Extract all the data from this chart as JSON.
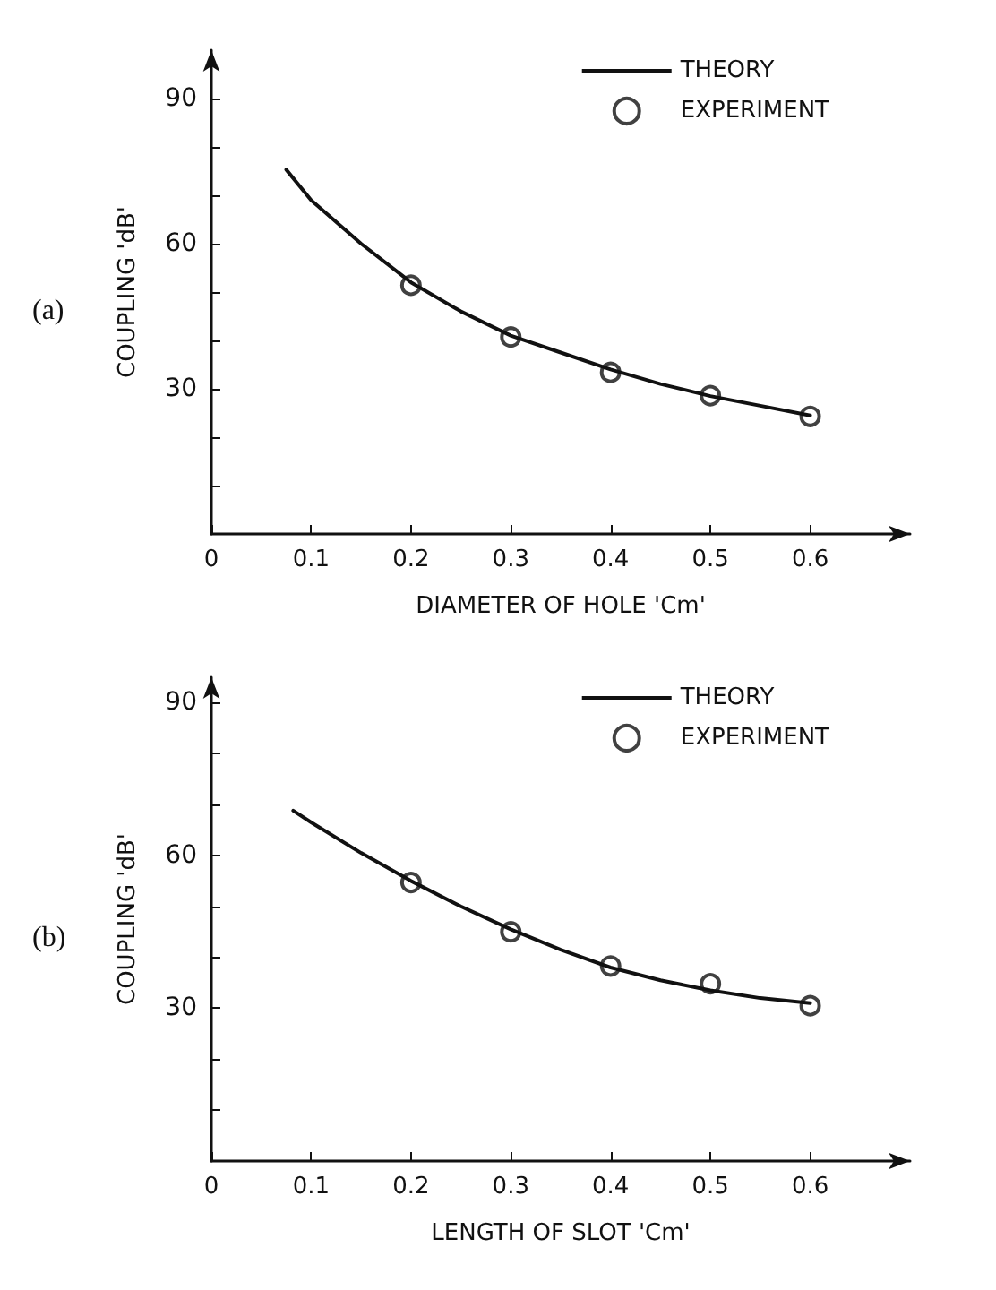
{
  "chart_data": [
    {
      "type": "line",
      "annotations": [
        "(a)"
      ],
      "xlabel": "DIAMETER OF HOLE 'Cm'",
      "ylabel": "COUPLING 'dB'",
      "xlim": [
        0,
        0.7
      ],
      "ylim": [
        0,
        100
      ],
      "xticks": [
        0,
        0.1,
        0.2,
        0.3,
        0.4,
        0.5,
        0.6
      ],
      "yticks": [
        {
          "value": 10,
          "label": null
        },
        {
          "value": 20,
          "label": null
        },
        30,
        {
          "value": 40,
          "label": null
        },
        {
          "value": 50,
          "label": null
        },
        60,
        {
          "value": 70,
          "label": null
        },
        {
          "value": 80,
          "label": null
        },
        90
      ],
      "grid": false,
      "legend": "top right",
      "series": [
        {
          "name": "THEORY",
          "color": "#111111",
          "marker": "none",
          "line_style": "solid",
          "x": [
            0.075,
            0.1,
            0.15,
            0.2,
            0.25,
            0.3,
            0.35,
            0.4,
            0.45,
            0.5,
            0.55,
            0.6
          ],
          "values": [
            75.3,
            69,
            60,
            52,
            46,
            41,
            37.5,
            34,
            31,
            28.5,
            26.5,
            24.5
          ]
        },
        {
          "name": "EXPERIMENT",
          "type": "scatter",
          "color": "#111111",
          "marker": "circle",
          "x": [
            0.2,
            0.3,
            0.4,
            0.5,
            0.6
          ],
          "values": [
            51.4,
            40.7,
            33.4,
            28.6,
            24.3
          ]
        }
      ]
    },
    {
      "type": "line",
      "annotations": [
        "(b)"
      ],
      "xlabel": "LENGTH OF SLOT 'Cm'",
      "ylabel": "COUPLING 'dB'",
      "xlim": [
        0,
        0.7
      ],
      "ylim": [
        0,
        95
      ],
      "xticks": [
        0,
        0.1,
        0.2,
        0.3,
        0.4,
        0.5,
        0.6
      ],
      "yticks": [
        {
          "value": 10,
          "label": null
        },
        {
          "value": 20,
          "label": null
        },
        30,
        {
          "value": 40,
          "label": null
        },
        {
          "value": 50,
          "label": null
        },
        60,
        {
          "value": 70,
          "label": null
        },
        {
          "value": 80,
          "label": null
        },
        90
      ],
      "grid": false,
      "legend": "top right",
      "series": [
        {
          "name": "THEORY",
          "color": "#111111",
          "marker": "none",
          "line_style": "solid",
          "x": [
            0.082,
            0.1,
            0.15,
            0.2,
            0.25,
            0.3,
            0.35,
            0.4,
            0.45,
            0.5,
            0.55,
            0.6
          ],
          "values": [
            68.8,
            66.5,
            60.5,
            55,
            50,
            45.5,
            41.5,
            38,
            35.5,
            33.5,
            32,
            31
          ]
        },
        {
          "name": "EXPERIMENT",
          "type": "scatter",
          "color": "#111111",
          "marker": "circle",
          "x": [
            0.2,
            0.3,
            0.4,
            0.5,
            0.6
          ],
          "values": [
            54.7,
            45.0,
            38.3,
            34.8,
            30.5
          ]
        }
      ]
    }
  ]
}
